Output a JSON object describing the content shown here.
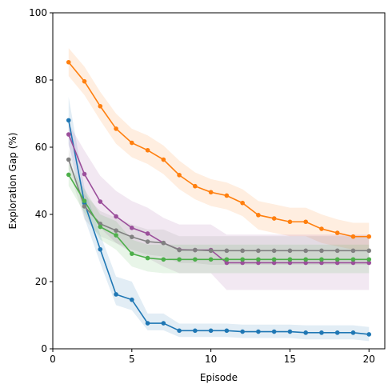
{
  "chart_data": {
    "type": "line",
    "title": "",
    "xlabel": "Episode",
    "ylabel": "Exploration Gap (%)",
    "xlim": [
      0,
      21
    ],
    "ylim": [
      0,
      100
    ],
    "xticks": [
      0,
      5,
      10,
      15,
      20
    ],
    "yticks": [
      0,
      20,
      40,
      60,
      80,
      100
    ],
    "grid": false,
    "legend": "none",
    "x": [
      1,
      2,
      3,
      4,
      5,
      6,
      7,
      8,
      9,
      10,
      11,
      12,
      13,
      14,
      15,
      16,
      17,
      18,
      19,
      20
    ],
    "series": [
      {
        "color": "#ff7f0e",
        "values": [
          85.3,
          79.6,
          72.2,
          65.5,
          61.3,
          59.1,
          56.3,
          51.7,
          48.4,
          46.6,
          45.6,
          43.4,
          39.8,
          38.8,
          37.8,
          37.8,
          35.7,
          34.5,
          33.4,
          33.4
        ],
        "lower": [
          81.2,
          75.5,
          68.0,
          61.0,
          57.0,
          55.0,
          52.0,
          47.5,
          44.5,
          42.5,
          41.5,
          39.5,
          35.5,
          34.5,
          33.5,
          33.5,
          31.5,
          30.5,
          29.5,
          29.5
        ],
        "upper": [
          89.5,
          84.0,
          76.5,
          70.0,
          65.5,
          63.5,
          60.5,
          56.0,
          52.5,
          50.5,
          49.5,
          47.5,
          44.0,
          43.0,
          42.0,
          42.0,
          40.0,
          38.5,
          37.5,
          37.5
        ]
      },
      {
        "color": "#1f77b4",
        "values": [
          68.0,
          43.4,
          29.6,
          16.2,
          14.6,
          7.6,
          7.6,
          5.4,
          5.4,
          5.4,
          5.4,
          5.1,
          5.1,
          5.1,
          5.1,
          4.8,
          4.8,
          4.8,
          4.8,
          4.3
        ],
        "lower": [
          61.0,
          39.0,
          25.5,
          13.0,
          11.5,
          5.5,
          5.5,
          3.5,
          3.5,
          3.5,
          3.5,
          3.2,
          3.2,
          3.2,
          3.2,
          2.8,
          2.8,
          2.8,
          2.8,
          2.3
        ],
        "upper": [
          75.0,
          48.0,
          34.0,
          21.5,
          20.0,
          10.5,
          10.5,
          7.5,
          7.5,
          7.5,
          7.5,
          7.2,
          7.2,
          7.2,
          7.2,
          7.0,
          7.0,
          7.0,
          7.0,
          6.5
        ]
      },
      {
        "color": "#9b4f9b",
        "values": [
          63.8,
          52.0,
          43.8,
          39.4,
          36.0,
          34.3,
          31.5,
          29.5,
          29.4,
          29.4,
          25.6,
          25.6,
          25.6,
          25.6,
          25.6,
          25.6,
          25.6,
          25.6,
          25.6,
          25.6
        ],
        "lower": [
          60.5,
          45.0,
          36.0,
          31.5,
          28.5,
          27.0,
          24.5,
          22.5,
          22.5,
          22.5,
          17.5,
          17.5,
          17.5,
          17.5,
          17.5,
          17.5,
          17.5,
          17.5,
          17.5,
          17.5
        ],
        "upper": [
          67.0,
          59.0,
          51.5,
          47.0,
          44.0,
          42.0,
          39.0,
          37.0,
          37.0,
          37.0,
          34.0,
          34.0,
          34.0,
          34.0,
          34.0,
          34.0,
          34.0,
          34.0,
          34.0,
          34.0
        ]
      },
      {
        "color": "#808080",
        "values": [
          56.3,
          42.4,
          37.2,
          35.2,
          33.3,
          31.9,
          31.5,
          29.4,
          29.4,
          29.2,
          29.2,
          29.2,
          29.2,
          29.2,
          29.2,
          29.2,
          29.2,
          29.2,
          29.2,
          29.2
        ],
        "lower": [
          53.5,
          38.5,
          33.5,
          31.5,
          29.5,
          28.0,
          27.5,
          25.5,
          25.5,
          25.0,
          25.0,
          25.0,
          25.0,
          25.0,
          25.0,
          25.0,
          25.0,
          25.0,
          25.0,
          25.0
        ],
        "upper": [
          59.5,
          46.0,
          41.0,
          39.0,
          37.0,
          35.5,
          35.5,
          33.5,
          33.5,
          33.5,
          33.5,
          33.5,
          33.5,
          33.5,
          33.5,
          33.5,
          33.5,
          33.5,
          33.5,
          33.5
        ]
      },
      {
        "color": "#4daf4a",
        "values": [
          51.8,
          44.0,
          36.3,
          33.8,
          28.3,
          27.0,
          26.6,
          26.6,
          26.6,
          26.6,
          26.6,
          26.6,
          26.6,
          26.6,
          26.6,
          26.6,
          26.6,
          26.6,
          26.6,
          26.6
        ],
        "lower": [
          48.5,
          40.5,
          32.5,
          29.5,
          24.5,
          23.0,
          22.5,
          22.5,
          22.5,
          22.5,
          22.5,
          22.5,
          22.5,
          22.5,
          22.5,
          22.5,
          22.5,
          22.5,
          22.5,
          22.5
        ],
        "upper": [
          55.0,
          47.5,
          40.0,
          38.0,
          32.5,
          31.0,
          31.0,
          31.0,
          31.0,
          31.0,
          31.0,
          31.0,
          31.0,
          31.0,
          31.0,
          31.0,
          31.0,
          31.0,
          31.0,
          31.0
        ]
      }
    ]
  }
}
